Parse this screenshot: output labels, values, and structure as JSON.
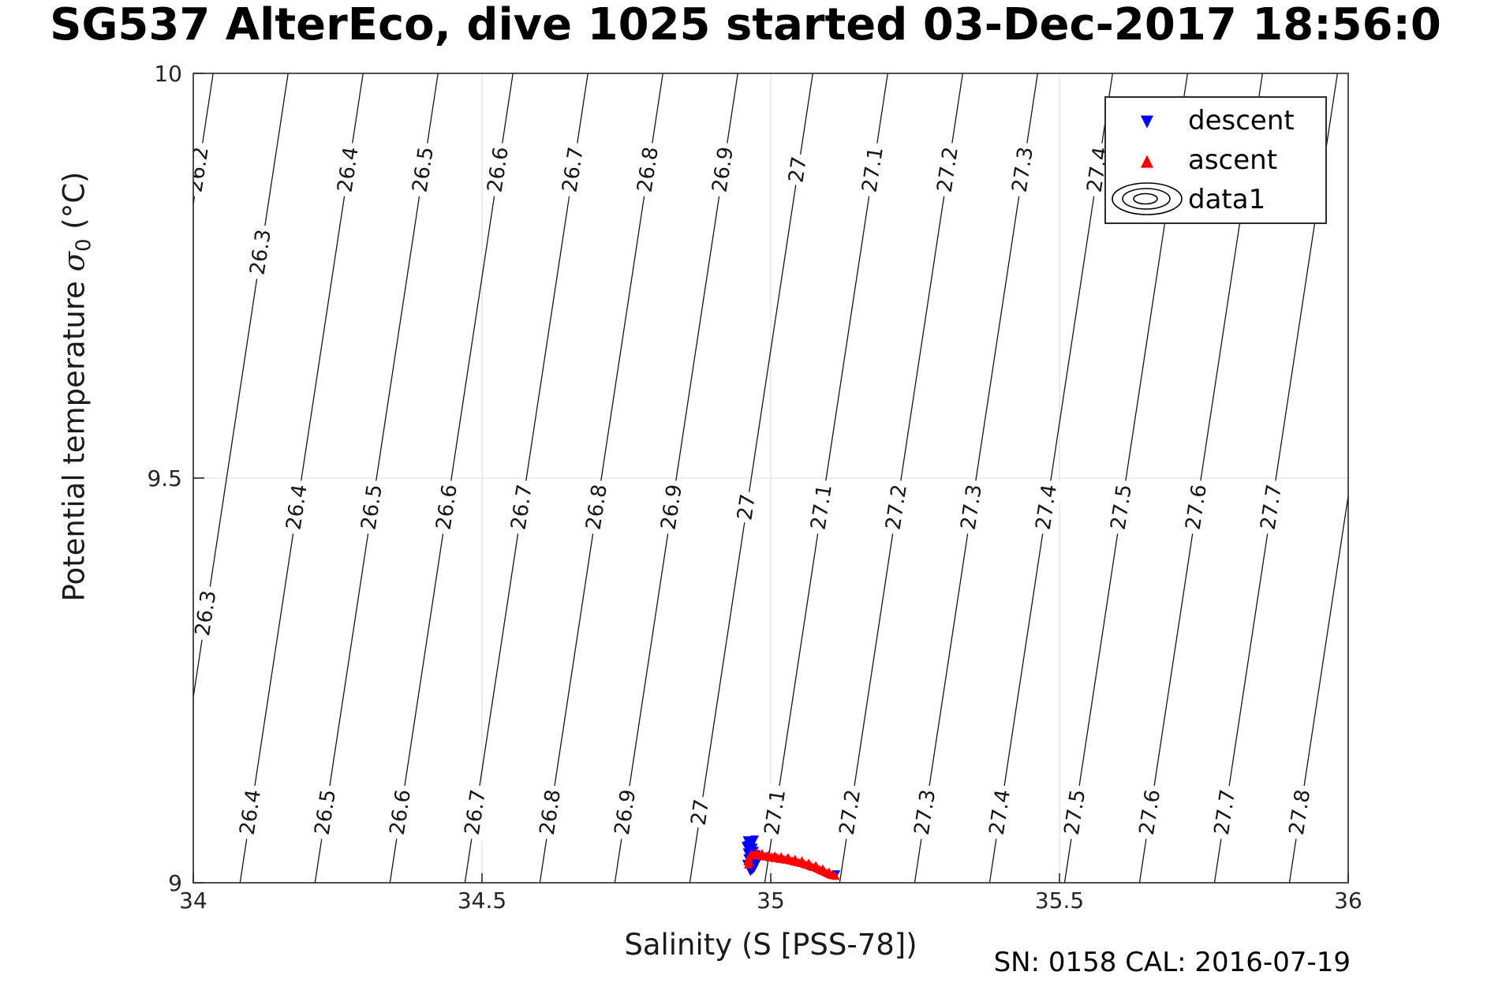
{
  "title": "SG537 AlterEco, dive 1025 started 03-Dec-2017 18:56:0",
  "axes": {
    "xlabel": "Salinity (S [PSS-78])",
    "ylabel_prefix": "Potential temperature ",
    "ylabel_sigma": "σ",
    "ylabel_sub": "0",
    "ylabel_suffix": " (°C)"
  },
  "annotation": "SN: 0158  CAL: 2016-07-19",
  "legend": [
    {
      "label": "descent",
      "marker": "triangle-down",
      "color": "#0000ff"
    },
    {
      "label": "ascent",
      "marker": "triangle-up",
      "color": "#ff0000"
    },
    {
      "label": "data1",
      "marker": "contour-rings",
      "color": "#000000"
    }
  ],
  "chart_data": {
    "type": "scatter",
    "title": "SG537 AlterEco, dive 1025 started 03-Dec-2017 18:56:0",
    "xlabel": "Salinity (S [PSS-78])",
    "ylabel": "Potential temperature σ0 (°C)",
    "xlim": [
      34,
      36
    ],
    "ylim": [
      9,
      10
    ],
    "xticks": [
      34,
      34.5,
      35,
      35.5,
      36
    ],
    "xtick_labels": [
      "34",
      "34.5",
      "35",
      "35.5",
      "36"
    ],
    "yticks": [
      9,
      9.5,
      10
    ],
    "ytick_labels": [
      "9",
      "9.5",
      "10"
    ],
    "grid": true,
    "grid_x": [
      34.5,
      35,
      35.5
    ],
    "grid_y": [
      9.5
    ],
    "grid_color": "#e3e3e3",
    "axis_color": "#262626",
    "contours": {
      "name": "data1",
      "color": "#161616",
      "sigma_levels": [
        26.2,
        26.3,
        26.4,
        26.5,
        26.6,
        26.7,
        26.8,
        26.9,
        27,
        27.1,
        27.2,
        27.3,
        27.4,
        27.5,
        27.6,
        27.7,
        27.8
      ],
      "model": {
        "S_base_level": 26.4,
        "S_base": 34.081,
        "dS_per_level": 1.298,
        "dS_per_degC": 0.213
      },
      "label_rows": [
        {
          "T": 9.881,
          "levels": [
            26.2,
            26.4,
            26.5,
            26.6,
            26.7,
            26.8,
            26.9,
            27,
            27.1,
            27.2,
            27.3,
            27.4
          ]
        },
        {
          "T": 9.779,
          "levels": [
            26.3
          ]
        },
        {
          "T": 9.464,
          "levels": [
            26.4,
            26.5,
            26.6,
            26.7,
            26.8,
            26.9,
            27,
            27.1,
            27.2,
            27.3,
            27.4,
            27.5,
            27.6,
            27.7,
            27.8
          ]
        },
        {
          "T": 9.333,
          "levels": [
            26.3
          ]
        },
        {
          "T": 9.087,
          "levels": [
            26.4,
            26.5,
            26.6,
            26.7,
            26.8,
            26.9,
            27,
            27.1,
            27.2,
            27.3,
            27.4,
            27.5,
            27.6,
            27.7,
            27.8
          ]
        }
      ]
    },
    "series": [
      {
        "name": "descent",
        "marker": "triangle-down",
        "color": "#0000ff",
        "points": [
          [
            34.966,
            9.052
          ],
          [
            34.963,
            9.05
          ],
          [
            34.968,
            9.049
          ],
          [
            34.96,
            9.047
          ],
          [
            34.965,
            9.046
          ],
          [
            34.97,
            9.044
          ],
          [
            34.961,
            9.043
          ],
          [
            34.966,
            9.041
          ],
          [
            34.972,
            9.04
          ],
          [
            34.959,
            9.038
          ],
          [
            34.964,
            9.037
          ],
          [
            34.969,
            9.036
          ],
          [
            34.962,
            9.035
          ],
          [
            34.967,
            9.033
          ],
          [
            34.973,
            9.032
          ],
          [
            34.96,
            9.031
          ],
          [
            34.965,
            9.03
          ],
          [
            34.97,
            9.028
          ],
          [
            34.963,
            9.027
          ],
          [
            34.968,
            9.026
          ],
          [
            34.958,
            9.024
          ],
          [
            34.964,
            9.023
          ],
          [
            34.969,
            9.022
          ],
          [
            34.961,
            9.021
          ],
          [
            34.966,
            9.02
          ],
          [
            34.971,
            9.018
          ],
          [
            34.963,
            9.017
          ],
          [
            34.968,
            9.016
          ],
          [
            34.965,
            9.014
          ],
          [
            34.972,
            9.054
          ],
          [
            34.957,
            9.046
          ],
          [
            34.975,
            9.036
          ],
          [
            34.976,
            9.025
          ],
          [
            34.959,
            9.053
          ],
          [
            35.113,
            9.011
          ]
        ]
      },
      {
        "name": "ascent",
        "marker": "triangle-up",
        "color": "#ff0000",
        "points": [
          [
            34.96,
            9.026
          ],
          [
            34.962,
            9.03
          ],
          [
            34.964,
            9.033
          ],
          [
            34.966,
            9.034
          ],
          [
            34.968,
            9.035
          ],
          [
            34.971,
            9.034
          ],
          [
            34.974,
            9.035
          ],
          [
            34.977,
            9.034
          ],
          [
            34.98,
            9.033
          ],
          [
            34.983,
            9.034
          ],
          [
            34.986,
            9.033
          ],
          [
            34.989,
            9.032
          ],
          [
            34.992,
            9.033
          ],
          [
            34.995,
            9.032
          ],
          [
            34.998,
            9.031
          ],
          [
            35.001,
            9.032
          ],
          [
            35.004,
            9.031
          ],
          [
            35.007,
            9.03
          ],
          [
            35.01,
            9.031
          ],
          [
            35.013,
            9.03
          ],
          [
            35.016,
            9.029
          ],
          [
            35.019,
            9.03
          ],
          [
            35.022,
            9.029
          ],
          [
            35.025,
            9.028
          ],
          [
            35.028,
            9.029
          ],
          [
            35.031,
            9.028
          ],
          [
            35.034,
            9.027
          ],
          [
            35.037,
            9.027
          ],
          [
            35.04,
            9.026
          ],
          [
            35.043,
            9.026
          ],
          [
            35.046,
            9.025
          ],
          [
            35.049,
            9.025
          ],
          [
            35.052,
            9.024
          ],
          [
            35.055,
            9.024
          ],
          [
            35.058,
            9.023
          ],
          [
            35.061,
            9.022
          ],
          [
            35.064,
            9.022
          ],
          [
            35.067,
            9.021
          ],
          [
            35.07,
            9.02
          ],
          [
            35.073,
            9.019
          ],
          [
            35.076,
            9.019
          ],
          [
            35.079,
            9.018
          ],
          [
            35.082,
            9.017
          ],
          [
            35.085,
            9.016
          ],
          [
            35.088,
            9.015
          ],
          [
            35.091,
            9.014
          ],
          [
            35.094,
            9.013
          ],
          [
            35.097,
            9.012
          ],
          [
            35.1,
            9.011
          ],
          [
            35.103,
            9.01
          ],
          [
            35.106,
            9.009
          ],
          [
            35.109,
            9.009
          ],
          [
            35.112,
            9.008
          ],
          [
            34.961,
            9.022
          ],
          [
            34.963,
            9.025
          ],
          [
            34.975,
            9.037
          ],
          [
            34.985,
            9.036
          ],
          [
            34.996,
            9.034
          ],
          [
            35.007,
            9.033
          ],
          [
            35.018,
            9.032
          ],
          [
            35.03,
            9.031
          ],
          [
            35.042,
            9.029
          ],
          [
            35.054,
            9.027
          ],
          [
            35.066,
            9.024
          ],
          [
            35.078,
            9.021
          ],
          [
            35.09,
            9.017
          ],
          [
            35.101,
            9.013
          ]
        ]
      }
    ]
  }
}
